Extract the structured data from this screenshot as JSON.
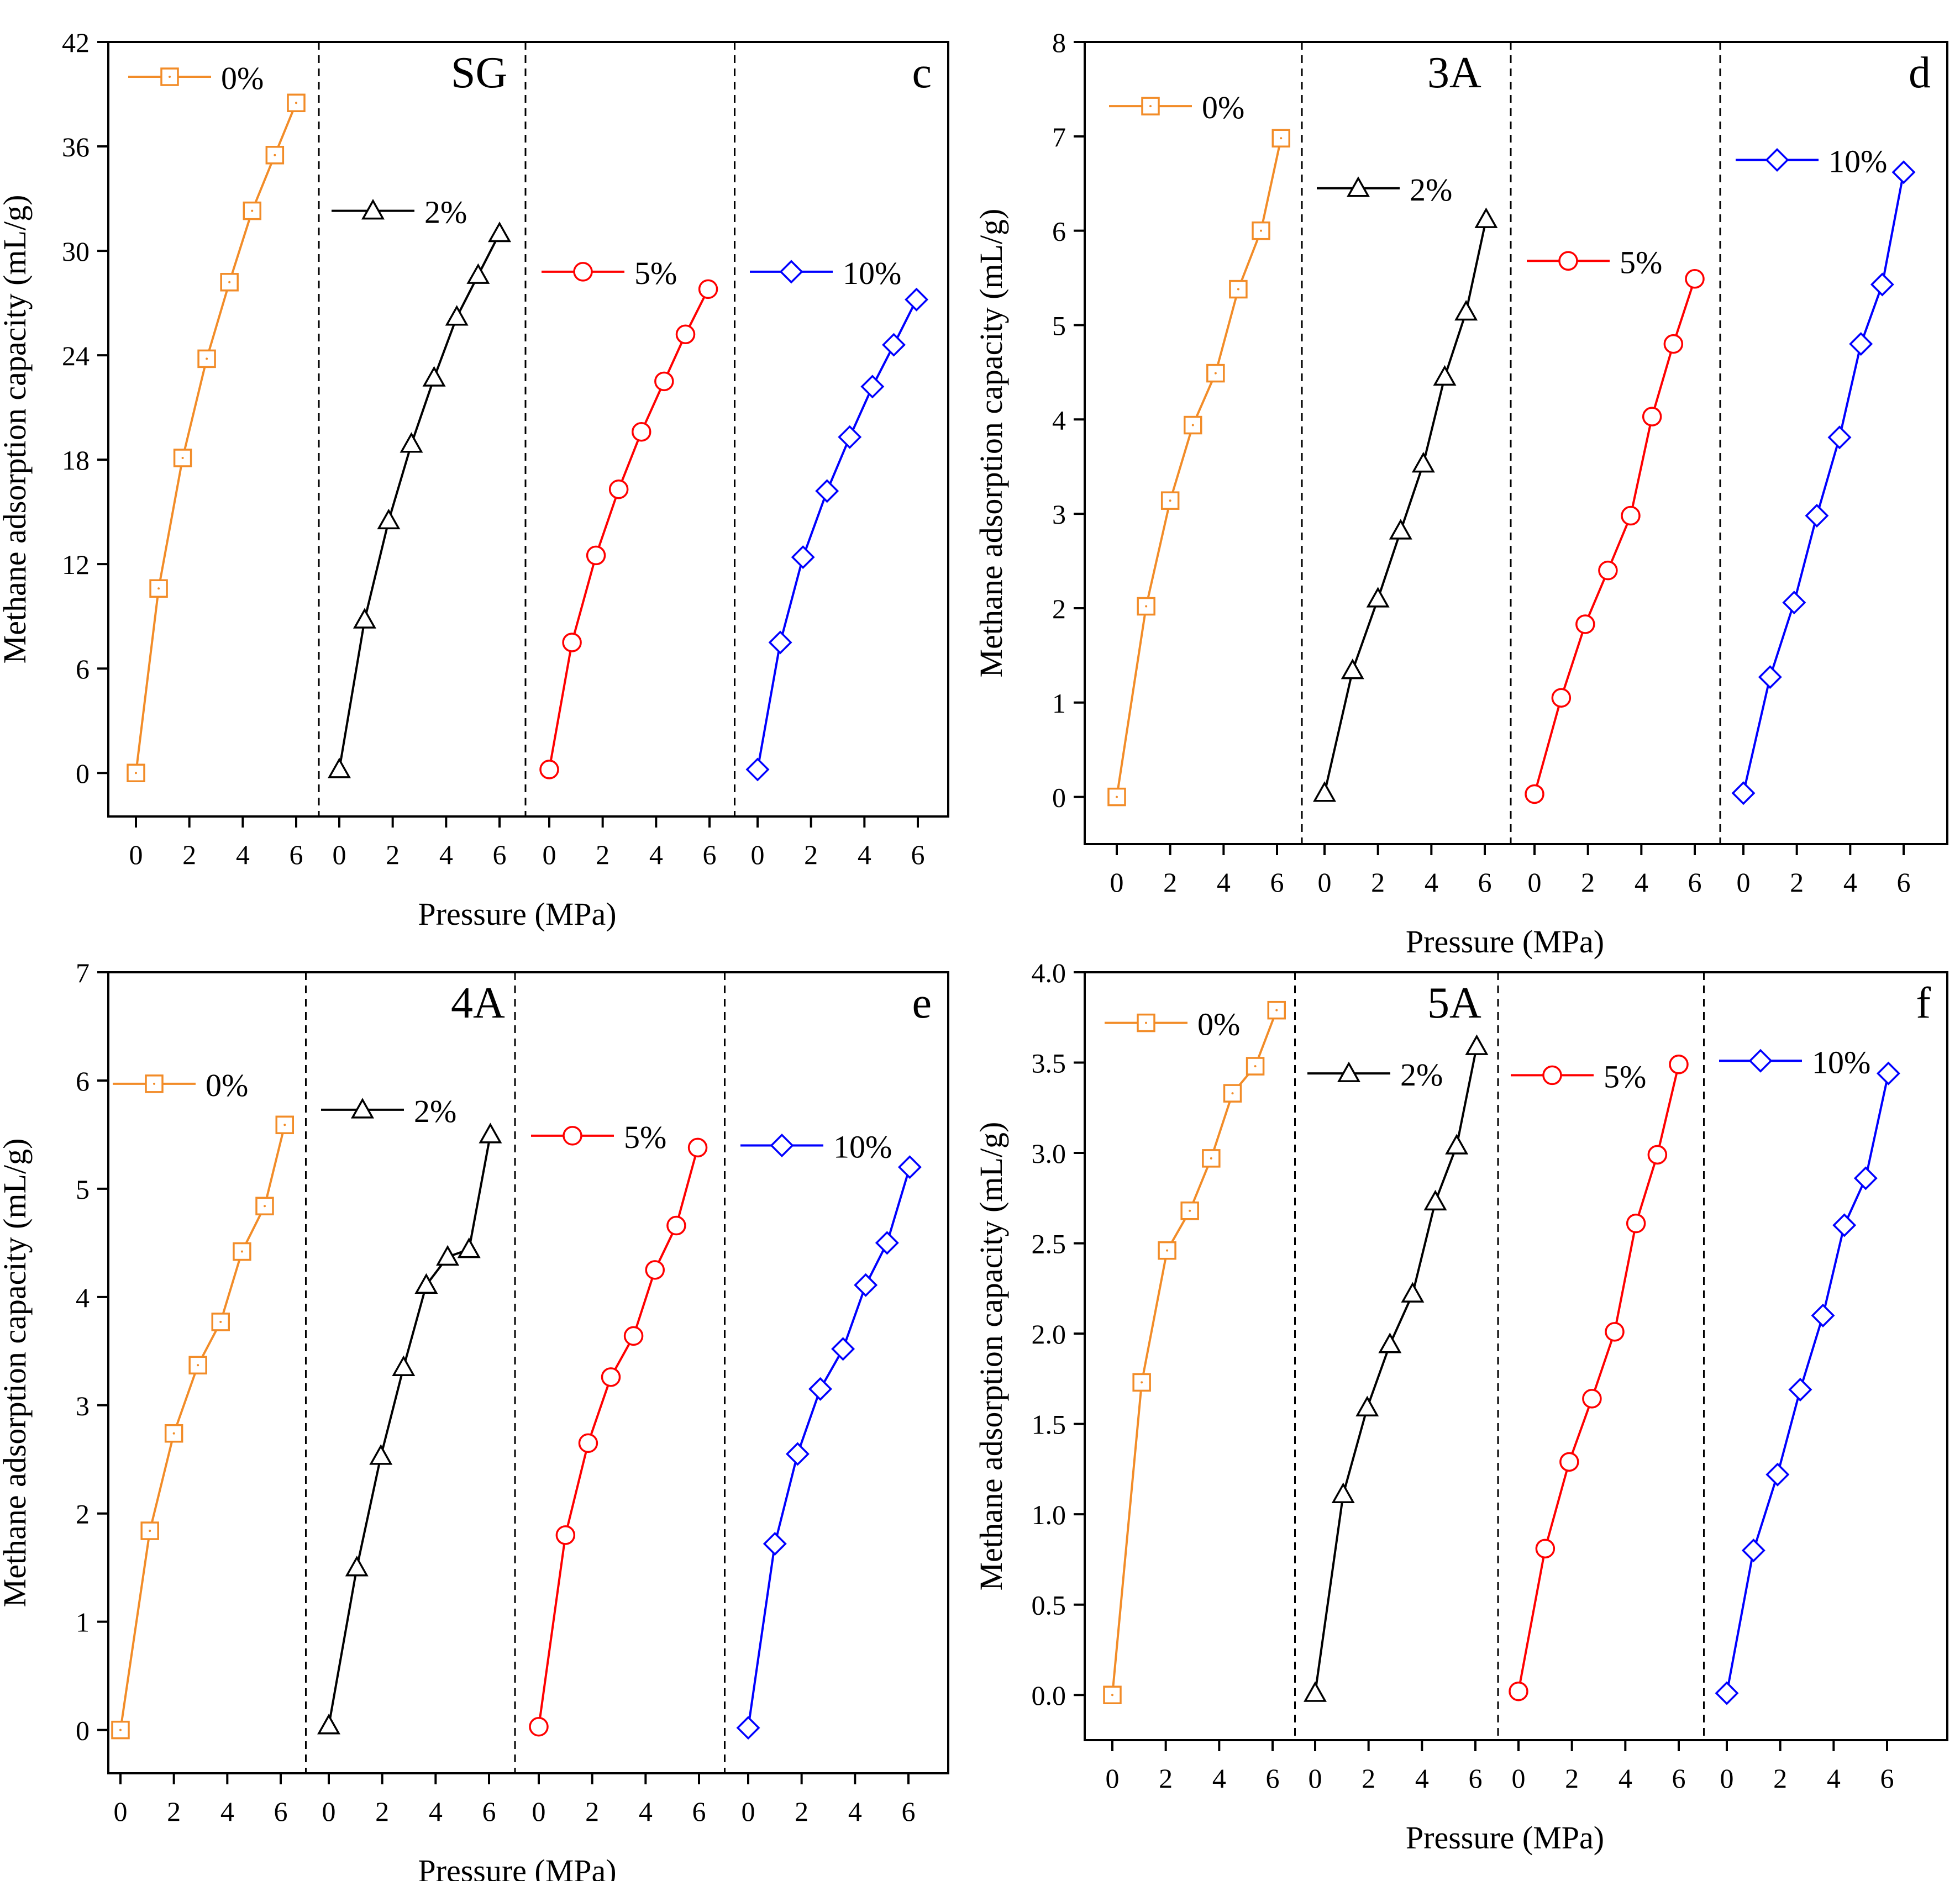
{
  "figure": {
    "x_axis_label": "Pressure (MPa)",
    "y_axis_label": "Methane adsorption capacity (mL/g)"
  },
  "chart_data": [
    {
      "type": "line",
      "panel": "c",
      "sample": "SG",
      "xlabel": "Pressure (MPa)",
      "ylabel": "Methane adsorption capacity (mL/g)",
      "ylim": [
        -2.5,
        42
      ],
      "yticks": [
        0,
        6,
        12,
        18,
        24,
        30,
        36,
        42
      ],
      "ytick_labels": [
        "0",
        "6",
        "12",
        "18",
        "24",
        "30",
        "36",
        "42"
      ],
      "xticks": [
        0,
        2,
        4,
        6
      ],
      "xtick_labels": [
        "0",
        "2",
        "4",
        "6"
      ],
      "series": [
        {
          "name": "0%",
          "color": "#f28c28",
          "marker": "square",
          "x": [
            0,
            0.85,
            1.75,
            2.65,
            3.5,
            4.35,
            5.2,
            6.0
          ],
          "y": [
            0,
            10.6,
            18.1,
            23.8,
            28.2,
            32.3,
            35.5,
            38.5
          ],
          "legend_y": 40
        },
        {
          "name": "2%",
          "color": "#000000",
          "marker": "triangle",
          "x": [
            0,
            0.95,
            1.85,
            2.7,
            3.55,
            4.4,
            5.2,
            6.0
          ],
          "y": [
            0.2,
            8.8,
            14.5,
            18.9,
            22.7,
            26.2,
            28.6,
            31.0
          ],
          "legend_y": 32.3
        },
        {
          "name": "5%",
          "color": "#ff0000",
          "marker": "circle",
          "x": [
            0,
            0.85,
            1.75,
            2.6,
            3.45,
            4.3,
            5.1,
            5.95
          ],
          "y": [
            0.2,
            7.5,
            12.5,
            16.3,
            19.6,
            22.5,
            25.2,
            27.8
          ],
          "legend_y": 28.8
        },
        {
          "name": "10%",
          "color": "#0000ff",
          "marker": "diamond",
          "x": [
            0,
            0.85,
            1.7,
            2.6,
            3.45,
            4.3,
            5.1,
            5.95
          ],
          "y": [
            0.2,
            7.5,
            12.4,
            16.2,
            19.3,
            22.2,
            24.6,
            27.2
          ],
          "legend_y": 28.8
        }
      ],
      "labels": {
        "sample": "SG",
        "panel": "c"
      }
    },
    {
      "type": "line",
      "panel": "d",
      "sample": "3A",
      "xlabel": "Pressure (MPa)",
      "ylabel": "Methane adsorption capacity (mL/g)",
      "ylim": [
        -0.5,
        8
      ],
      "yticks": [
        0,
        1,
        2,
        3,
        4,
        5,
        6,
        7,
        8
      ],
      "ytick_labels": [
        "0",
        "1",
        "2",
        "3",
        "4",
        "5",
        "6",
        "7",
        "8"
      ],
      "xticks": [
        0,
        2,
        4,
        6
      ],
      "xtick_labels": [
        "0",
        "2",
        "4",
        "6"
      ],
      "series": [
        {
          "name": "0%",
          "color": "#f28c28",
          "marker": "square",
          "x": [
            0,
            1.1,
            2.0,
            2.85,
            3.7,
            4.55,
            5.4,
            6.15
          ],
          "y": [
            0,
            2.02,
            3.14,
            3.94,
            4.49,
            5.38,
            6.0,
            6.98
          ],
          "legend_y": 7.32
        },
        {
          "name": "2%",
          "color": "#000000",
          "marker": "triangle",
          "x": [
            0,
            1.05,
            2.0,
            2.85,
            3.7,
            4.5,
            5.3,
            6.05
          ],
          "y": [
            0.04,
            1.34,
            2.1,
            2.82,
            3.53,
            4.45,
            5.14,
            6.12
          ],
          "legend_y": 6.45
        },
        {
          "name": "5%",
          "color": "#ff0000",
          "marker": "circle",
          "x": [
            0,
            1.0,
            1.9,
            2.75,
            3.6,
            4.4,
            5.2,
            6.0
          ],
          "y": [
            0.03,
            1.05,
            1.83,
            2.4,
            2.98,
            4.03,
            4.8,
            5.49
          ],
          "legend_y": 5.68
        },
        {
          "name": "10%",
          "color": "#0000ff",
          "marker": "diamond",
          "x": [
            0,
            1.0,
            1.9,
            2.75,
            3.6,
            4.4,
            5.2,
            6.0
          ],
          "y": [
            0.04,
            1.27,
            2.06,
            2.98,
            3.81,
            4.8,
            5.43,
            6.62
          ],
          "legend_y": 6.75
        }
      ],
      "labels": {
        "sample": "3A",
        "panel": "d"
      }
    },
    {
      "type": "line",
      "panel": "e",
      "sample": "4A",
      "xlabel": "Pressure (MPa)",
      "ylabel": "Methane adsorption capacity (mL/g)",
      "ylim": [
        -0.4,
        7
      ],
      "yticks": [
        0,
        1,
        2,
        3,
        4,
        5,
        6,
        7
      ],
      "ytick_labels": [
        "0",
        "1",
        "2",
        "3",
        "4",
        "5",
        "6",
        "7"
      ],
      "xticks": [
        0,
        2,
        4,
        6
      ],
      "xtick_labels": [
        "0",
        "2",
        "4",
        "6"
      ],
      "series": [
        {
          "name": "0%",
          "color": "#f28c28",
          "marker": "square",
          "x": [
            0,
            1.1,
            2.0,
            2.9,
            3.75,
            4.55,
            5.4,
            6.15
          ],
          "y": [
            0,
            1.84,
            2.74,
            3.37,
            3.77,
            4.42,
            4.84,
            5.59
          ],
          "legend_y": 5.97
        },
        {
          "name": "2%",
          "color": "#000000",
          "marker": "triangle",
          "x": [
            0,
            1.05,
            1.95,
            2.8,
            3.65,
            4.45,
            5.25,
            6.05
          ],
          "y": [
            0.04,
            1.5,
            2.53,
            3.35,
            4.11,
            4.37,
            4.44,
            5.5
          ],
          "legend_y": 5.73
        },
        {
          "name": "5%",
          "color": "#ff0000",
          "marker": "circle",
          "x": [
            0,
            1.0,
            1.85,
            2.7,
            3.55,
            4.35,
            5.15,
            5.95
          ],
          "y": [
            0.03,
            1.8,
            2.65,
            3.26,
            3.64,
            4.25,
            4.66,
            5.38
          ],
          "legend_y": 5.49
        },
        {
          "name": "10%",
          "color": "#0000ff",
          "marker": "diamond",
          "x": [
            0,
            1.0,
            1.85,
            2.7,
            3.55,
            4.4,
            5.2,
            6.05
          ],
          "y": [
            0.02,
            1.72,
            2.55,
            3.15,
            3.52,
            4.11,
            4.5,
            5.2
          ],
          "legend_y": 5.4
        }
      ],
      "labels": {
        "sample": "4A",
        "panel": "e"
      }
    },
    {
      "type": "line",
      "panel": "f",
      "sample": "5A",
      "xlabel": "Pressure (MPa)",
      "ylabel": "Methane adsorption capacity (mL/g)",
      "ylim": [
        -0.25,
        4.0
      ],
      "yticks": [
        0,
        0.5,
        1.0,
        1.5,
        2.0,
        2.5,
        3.0,
        3.5,
        4.0
      ],
      "ytick_labels": [
        "0.0",
        "0.5",
        "1.0",
        "1.5",
        "2.0",
        "2.5",
        "3.0",
        "3.5",
        "4.0"
      ],
      "xticks": [
        0,
        2,
        4,
        6
      ],
      "xtick_labels": [
        "0",
        "2",
        "4",
        "6"
      ],
      "series": [
        {
          "name": "0%",
          "color": "#f28c28",
          "marker": "square",
          "x": [
            0,
            1.1,
            2.05,
            2.9,
            3.7,
            4.5,
            5.35,
            6.15
          ],
          "y": [
            0,
            1.73,
            2.46,
            2.68,
            2.97,
            3.33,
            3.48,
            3.79
          ],
          "legend_y": 3.72
        },
        {
          "name": "2%",
          "color": "#000000",
          "marker": "triangle",
          "x": [
            0,
            1.05,
            1.95,
            2.8,
            3.65,
            4.5,
            5.3,
            6.05
          ],
          "y": [
            0.01,
            1.11,
            1.59,
            1.94,
            2.22,
            2.73,
            3.04,
            3.59
          ],
          "legend_y": 3.44
        },
        {
          "name": "5%",
          "color": "#ff0000",
          "marker": "circle",
          "x": [
            0,
            1.0,
            1.9,
            2.75,
            3.6,
            4.4,
            5.2,
            6.0
          ],
          "y": [
            0.02,
            0.81,
            1.29,
            1.64,
            2.01,
            2.61,
            2.99,
            3.49
          ],
          "legend_y": 3.43
        },
        {
          "name": "10%",
          "color": "#0000ff",
          "marker": "diamond",
          "x": [
            0,
            1.0,
            1.9,
            2.75,
            3.6,
            4.4,
            5.2,
            6.05
          ],
          "y": [
            0.01,
            0.8,
            1.22,
            1.69,
            2.1,
            2.6,
            2.86,
            3.44
          ],
          "legend_y": 3.51
        }
      ],
      "labels": {
        "sample": "5A",
        "panel": "f"
      }
    }
  ]
}
